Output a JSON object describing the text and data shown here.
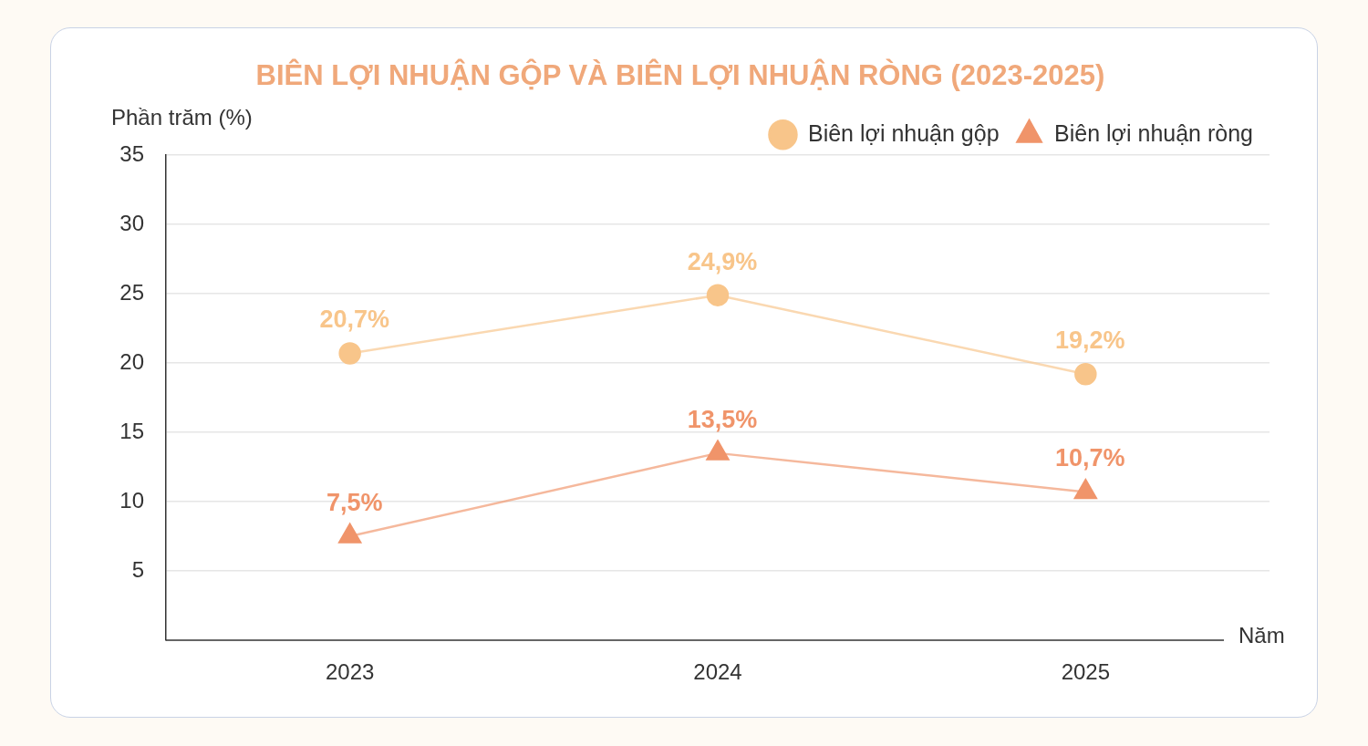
{
  "chart_data": {
    "type": "line",
    "title": "BIÊN LỢI NHUẬN GỘP VÀ BIÊN LỢI NHUẬN RÒNG (2023-2025)",
    "xlabel": "Năm",
    "ylabel": "Phần trăm (%)",
    "categories": [
      "2023",
      "2024",
      "2025"
    ],
    "series": [
      {
        "name": "Biên lợi nhuận gộp",
        "color": "#f8c58a",
        "marker": "circle",
        "values": [
          20.7,
          24.9,
          19.2
        ],
        "value_labels": [
          "20,7%",
          "24,9%",
          "19,2%"
        ]
      },
      {
        "name": "Biên lợi nhuận ròng",
        "color": "#f0946a",
        "marker": "triangle",
        "values": [
          7.5,
          13.5,
          10.7
        ],
        "value_labels": [
          "7,5%",
          "13,5%",
          "10,7%"
        ]
      }
    ],
    "ylim": [
      0,
      35
    ],
    "yticks": [
      5,
      10,
      15,
      20,
      25,
      30,
      35
    ],
    "grid": "y",
    "legend": "top right",
    "line_style": "solid"
  }
}
